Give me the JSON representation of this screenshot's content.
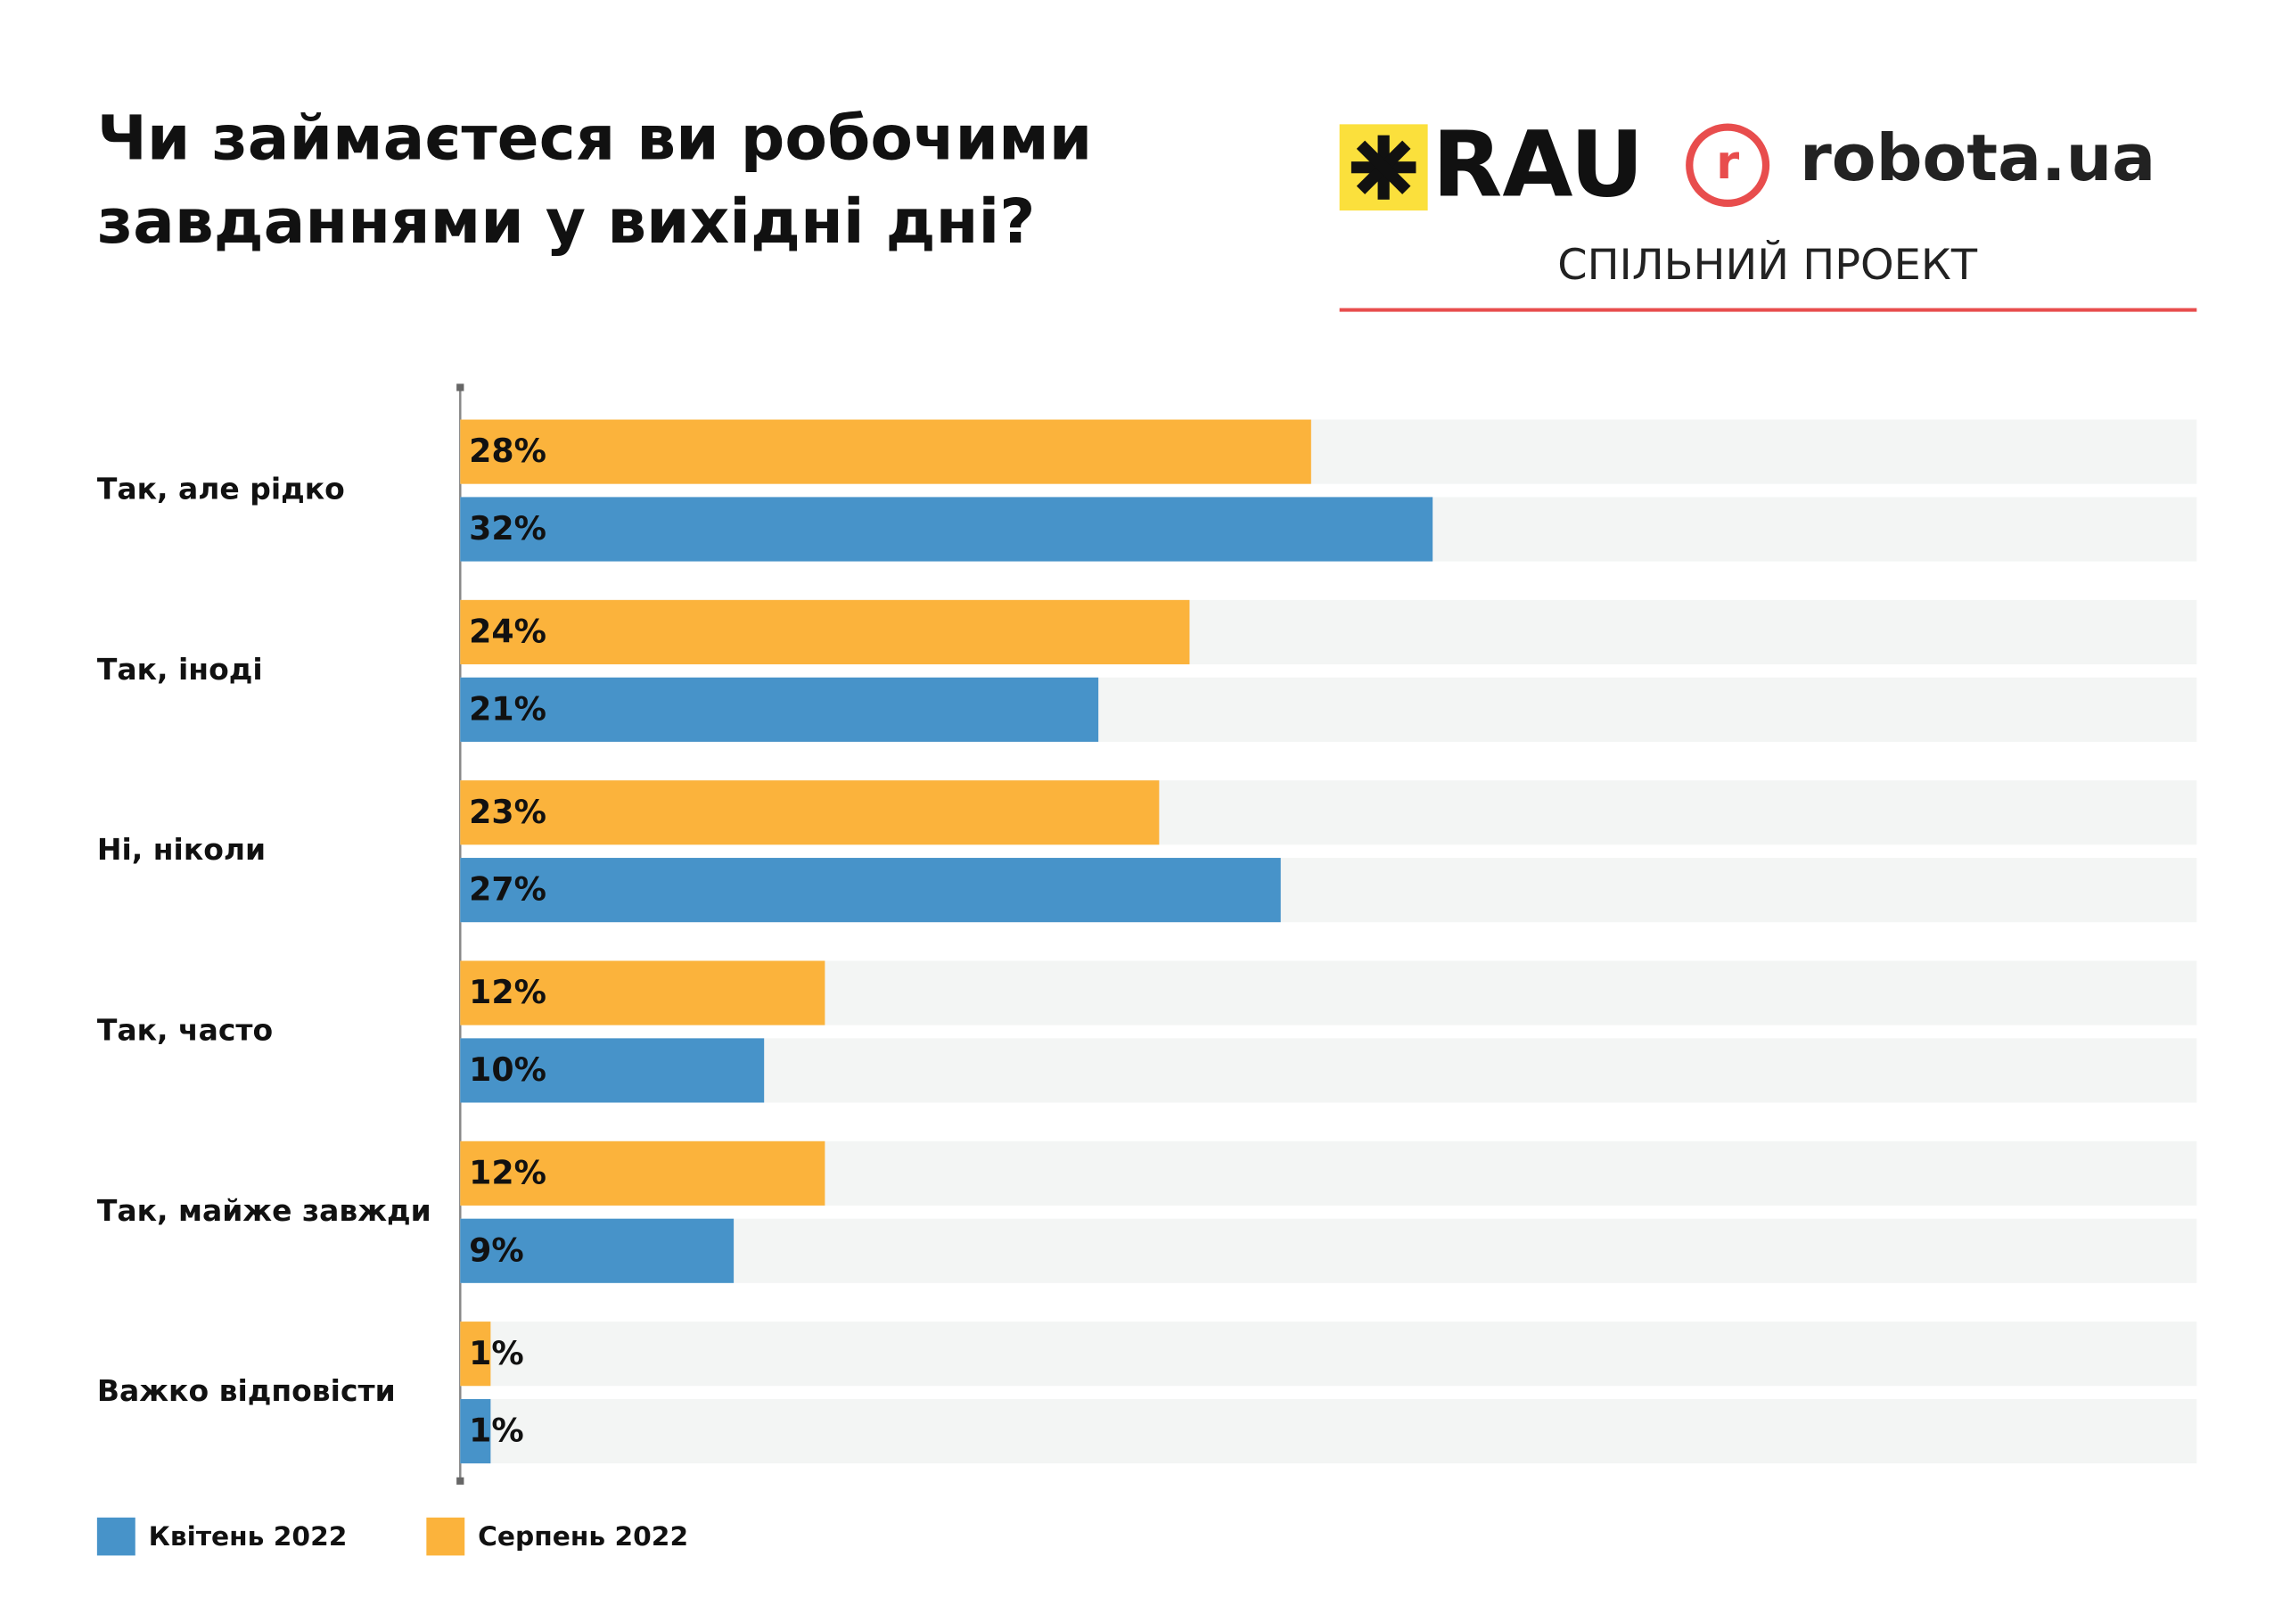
{
  "header": {
    "logo_left": "RAU",
    "logo_right": "robota.ua",
    "logo_icon": "r",
    "tagline": "СПІЛЬНИЙ ПРОЕКТ"
  },
  "chart_data": {
    "type": "bar",
    "orientation": "horizontal",
    "title": "Чи займаєтеся ви робочими завданнями у вихідні дні?",
    "categories": [
      "Так, але рідко",
      "Так, іноді",
      "Ні, ніколи",
      "Так, часто",
      "Так, майже завжди",
      "Важко відповісти"
    ],
    "series": [
      {
        "name": "Серпень 2022",
        "color": "#fbb33c",
        "values": [
          28,
          24,
          23,
          12,
          12,
          1
        ],
        "value_labels": [
          "28%",
          "24%",
          "23%",
          "12%",
          "12%",
          "1%"
        ]
      },
      {
        "name": "Квітень 2022",
        "color": "#4793c9",
        "values": [
          32,
          21,
          27,
          10,
          9,
          1
        ],
        "value_labels": [
          "32%",
          "21%",
          "27%",
          "10%",
          "9%",
          "1%"
        ]
      }
    ],
    "legend_order": [
      1,
      0
    ]
  }
}
